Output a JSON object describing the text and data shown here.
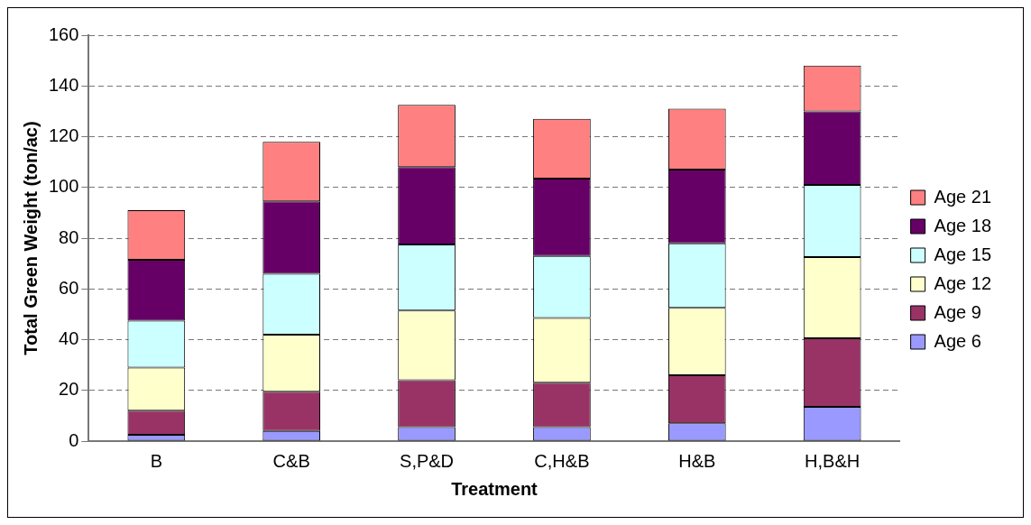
{
  "chart_data": {
    "type": "bar",
    "stacked": true,
    "xlabel": "Treatment",
    "ylabel": "Total Green Weight (ton/ac)",
    "categories": [
      "B",
      "C&B",
      "S,P&D",
      "C,H&B",
      "H&B",
      "H,B&H"
    ],
    "series": [
      {
        "name": "Age 6",
        "color": "#9999ff",
        "values": [
          2.5,
          4,
          5.5,
          5.5,
          7,
          13.5
        ]
      },
      {
        "name": "Age 9",
        "color": "#993366",
        "values": [
          9.5,
          15.5,
          18.5,
          17.5,
          19,
          27
        ]
      },
      {
        "name": "Age 12",
        "color": "#ffffcc",
        "values": [
          17,
          22.5,
          27.5,
          25.5,
          26.5,
          32
        ]
      },
      {
        "name": "Age 15",
        "color": "#ccffff",
        "values": [
          18.5,
          24,
          26,
          24.5,
          25.5,
          28.5
        ]
      },
      {
        "name": "Age 18",
        "color": "#660066",
        "values": [
          24,
          28.5,
          30.5,
          30.5,
          29,
          29
        ]
      },
      {
        "name": "Age 21",
        "color": "#ff8080",
        "values": [
          19.5,
          23.5,
          24.5,
          23.5,
          24,
          18
        ]
      }
    ],
    "ylim": [
      0,
      160
    ],
    "yticks": [
      0,
      20,
      40,
      60,
      80,
      100,
      120,
      140,
      160
    ],
    "grid": "y",
    "legend": "right"
  }
}
